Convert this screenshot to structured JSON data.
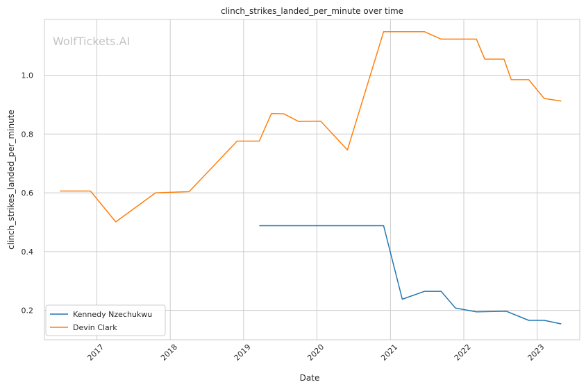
{
  "chart_data": {
    "type": "line",
    "title": "clinch_strikes_landed_per_minute over time",
    "xlabel": "Date",
    "ylabel": "clinch_strikes_landed_per_minute",
    "watermark": "WolfTickets.AI",
    "grid": true,
    "legend_position": "lower-left",
    "xlim": [
      "2016-04-15",
      "2023-08-01"
    ],
    "ylim": [
      0.1,
      1.19
    ],
    "x_ticks": [
      "2017-01-01",
      "2018-01-01",
      "2019-01-01",
      "2020-01-01",
      "2021-01-01",
      "2022-01-01",
      "2023-01-01"
    ],
    "x_tick_labels": [
      "2017",
      "2018",
      "2019",
      "2020",
      "2021",
      "2022",
      "2023"
    ],
    "y_ticks": [
      0.2,
      0.4,
      0.6,
      0.8,
      1.0
    ],
    "y_tick_labels": [
      "0.2",
      "0.4",
      "0.6",
      "0.8",
      "1.0"
    ],
    "series": [
      {
        "name": "Kennedy Nzechukwu",
        "color": "#1f77b4",
        "points": [
          [
            "2019-03-20",
            0.488
          ],
          [
            "2020-11-28",
            0.488
          ],
          [
            "2021-03-01",
            0.238
          ],
          [
            "2021-06-20",
            0.265
          ],
          [
            "2021-09-10",
            0.265
          ],
          [
            "2021-11-20",
            0.208
          ],
          [
            "2022-03-05",
            0.195
          ],
          [
            "2022-08-01",
            0.197
          ],
          [
            "2022-11-20",
            0.166
          ],
          [
            "2023-02-05",
            0.166
          ],
          [
            "2023-05-01",
            0.154
          ]
        ]
      },
      {
        "name": "Devin Clark",
        "color": "#ff7f0e",
        "points": [
          [
            "2016-07-01",
            0.606
          ],
          [
            "2016-11-30",
            0.606
          ],
          [
            "2017-04-05",
            0.501
          ],
          [
            "2017-10-20",
            0.6
          ],
          [
            "2018-04-05",
            0.604
          ],
          [
            "2018-11-30",
            0.776
          ],
          [
            "2019-03-20",
            0.776
          ],
          [
            "2019-05-20",
            0.87
          ],
          [
            "2019-07-20",
            0.869
          ],
          [
            "2019-10-01",
            0.843
          ],
          [
            "2020-01-20",
            0.844
          ],
          [
            "2020-06-01",
            0.746
          ],
          [
            "2020-11-28",
            1.148
          ],
          [
            "2021-06-20",
            1.148
          ],
          [
            "2021-09-10",
            1.123
          ],
          [
            "2022-03-05",
            1.123
          ],
          [
            "2022-04-15",
            1.055
          ],
          [
            "2022-07-20",
            1.055
          ],
          [
            "2022-08-25",
            0.985
          ],
          [
            "2022-11-20",
            0.985
          ],
          [
            "2023-02-05",
            0.921
          ],
          [
            "2023-05-01",
            0.912
          ]
        ]
      }
    ]
  }
}
